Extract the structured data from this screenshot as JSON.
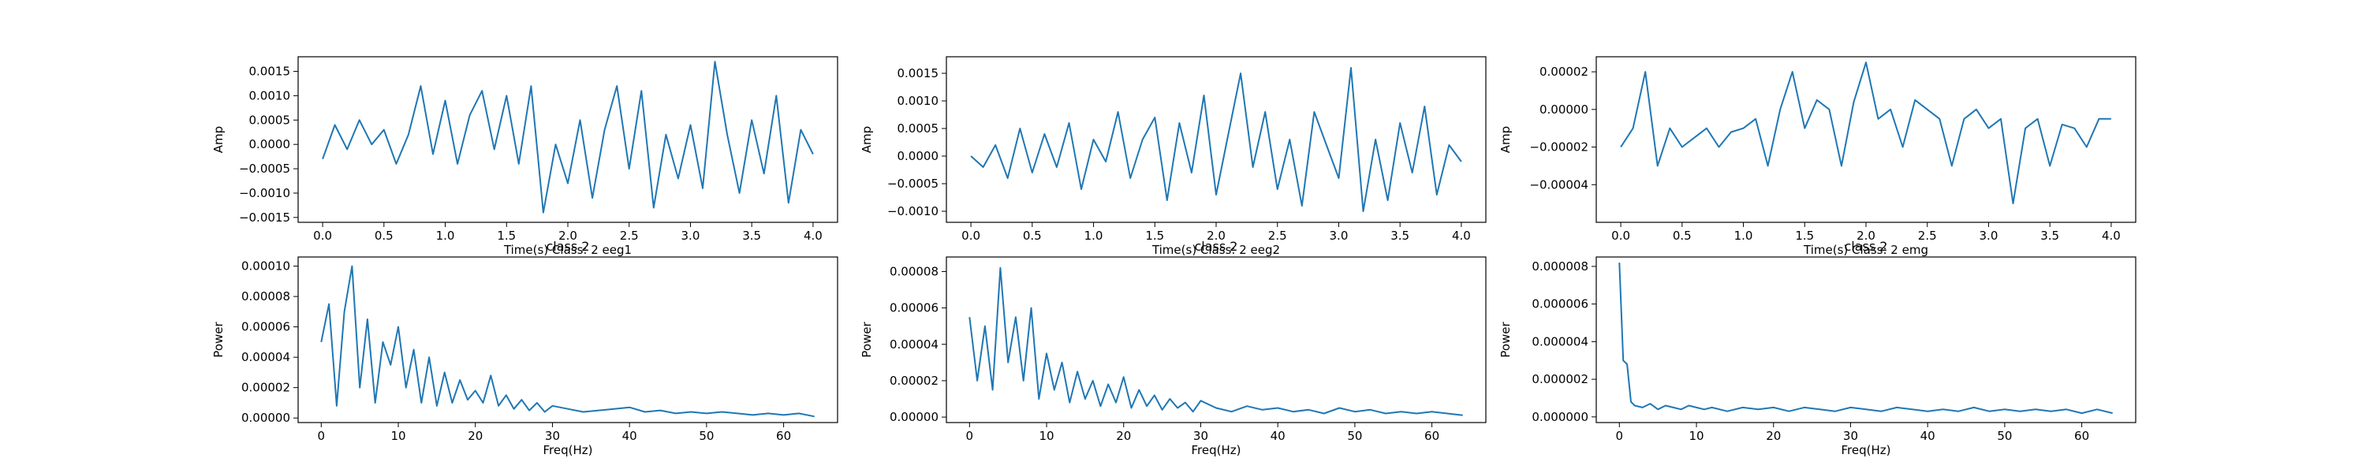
{
  "figure": {
    "overlap_titles": [
      "class 2",
      "class 2",
      "class 2"
    ]
  },
  "chart_data": [
    {
      "type": "line",
      "title": "",
      "xlabel": "Time(s) Class: 2 eeg1",
      "ylabel": "Amp",
      "xlim": [
        -0.2,
        4.2
      ],
      "ylim": [
        -0.0016,
        0.0018
      ],
      "xticks": [
        0.0,
        0.5,
        1.0,
        1.5,
        2.0,
        2.5,
        3.0,
        3.5,
        4.0
      ],
      "xtick_labels": [
        "0.0",
        "0.5",
        "1.0",
        "1.5",
        "2.0",
        "2.5",
        "3.0",
        "3.5",
        "4.0"
      ],
      "yticks": [
        -0.0015,
        -0.001,
        -0.0005,
        0.0,
        0.0005,
        0.001,
        0.0015
      ],
      "ytick_labels": [
        "−0.0015",
        "−0.0010",
        "−0.0005",
        "0.0000",
        "0.0005",
        "0.0010",
        "0.0015"
      ],
      "series": [
        {
          "color": "#1f77b4",
          "x": [
            0.0,
            0.1,
            0.2,
            0.3,
            0.4,
            0.5,
            0.6,
            0.7,
            0.8,
            0.9,
            1.0,
            1.1,
            1.2,
            1.3,
            1.4,
            1.5,
            1.6,
            1.7,
            1.8,
            1.9,
            2.0,
            2.1,
            2.2,
            2.3,
            2.4,
            2.5,
            2.6,
            2.7,
            2.8,
            2.9,
            3.0,
            3.1,
            3.2,
            3.3,
            3.4,
            3.5,
            3.6,
            3.7,
            3.8,
            3.9,
            4.0
          ],
          "y": [
            -0.0003,
            0.0004,
            -0.0001,
            0.0005,
            0.0,
            0.0003,
            -0.0004,
            0.0002,
            0.0012,
            -0.0002,
            0.0009,
            -0.0004,
            0.0006,
            0.0011,
            -0.0001,
            0.001,
            -0.0004,
            0.0012,
            -0.0014,
            0.0,
            -0.0008,
            0.0005,
            -0.0011,
            0.0003,
            0.0012,
            -0.0005,
            0.0011,
            -0.0013,
            0.0002,
            -0.0007,
            0.0004,
            -0.0009,
            0.0017,
            0.0002,
            -0.001,
            0.0005,
            -0.0006,
            0.001,
            -0.0012,
            0.0003,
            -0.0002
          ]
        }
      ]
    },
    {
      "type": "line",
      "title": "",
      "xlabel": "Time(s) Class: 2 eeg2",
      "ylabel": "Amp",
      "xlim": [
        -0.2,
        4.2
      ],
      "ylim": [
        -0.0012,
        0.0018
      ],
      "xticks": [
        0.0,
        0.5,
        1.0,
        1.5,
        2.0,
        2.5,
        3.0,
        3.5,
        4.0
      ],
      "xtick_labels": [
        "0.0",
        "0.5",
        "1.0",
        "1.5",
        "2.0",
        "2.5",
        "3.0",
        "3.5",
        "4.0"
      ],
      "yticks": [
        -0.001,
        -0.0005,
        0.0,
        0.0005,
        0.001,
        0.0015
      ],
      "ytick_labels": [
        "−0.0010",
        "−0.0005",
        "0.0000",
        "0.0005",
        "0.0010",
        "0.0015"
      ],
      "series": [
        {
          "color": "#1f77b4",
          "x": [
            0.0,
            0.1,
            0.2,
            0.3,
            0.4,
            0.5,
            0.6,
            0.7,
            0.8,
            0.9,
            1.0,
            1.1,
            1.2,
            1.3,
            1.4,
            1.5,
            1.6,
            1.7,
            1.8,
            1.9,
            2.0,
            2.1,
            2.2,
            2.3,
            2.4,
            2.5,
            2.6,
            2.7,
            2.8,
            2.9,
            3.0,
            3.1,
            3.2,
            3.3,
            3.4,
            3.5,
            3.6,
            3.7,
            3.8,
            3.9,
            4.0
          ],
          "y": [
            0.0,
            -0.0002,
            0.0002,
            -0.0004,
            0.0005,
            -0.0003,
            0.0004,
            -0.0002,
            0.0006,
            -0.0006,
            0.0003,
            -0.0001,
            0.0008,
            -0.0004,
            0.0003,
            0.0007,
            -0.0008,
            0.0006,
            -0.0003,
            0.0011,
            -0.0007,
            0.0004,
            0.0015,
            -0.0002,
            0.0008,
            -0.0006,
            0.0003,
            -0.0009,
            0.0008,
            0.0002,
            -0.0004,
            0.0016,
            -0.001,
            0.0003,
            -0.0008,
            0.0006,
            -0.0003,
            0.0009,
            -0.0007,
            0.0002,
            -0.0001
          ]
        }
      ]
    },
    {
      "type": "line",
      "title": "",
      "xlabel": "Time(s) Class: 2 emg",
      "ylabel": "Amp",
      "xlim": [
        -0.2,
        4.2
      ],
      "ylim": [
        -6e-05,
        2.8e-05
      ],
      "xticks": [
        0.0,
        0.5,
        1.0,
        1.5,
        2.0,
        2.5,
        3.0,
        3.5,
        4.0
      ],
      "xtick_labels": [
        "0.0",
        "0.5",
        "1.0",
        "1.5",
        "2.0",
        "2.5",
        "3.0",
        "3.5",
        "4.0"
      ],
      "yticks": [
        -4e-05,
        -2e-05,
        0.0,
        2e-05
      ],
      "ytick_labels": [
        "−0.00004",
        "−0.00002",
        "0.00000",
        "0.00002"
      ],
      "series": [
        {
          "color": "#1f77b4",
          "x": [
            0.0,
            0.1,
            0.2,
            0.3,
            0.4,
            0.5,
            0.6,
            0.7,
            0.8,
            0.9,
            1.0,
            1.1,
            1.2,
            1.3,
            1.4,
            1.5,
            1.6,
            1.7,
            1.8,
            1.9,
            2.0,
            2.1,
            2.2,
            2.3,
            2.4,
            2.5,
            2.6,
            2.7,
            2.8,
            2.9,
            3.0,
            3.1,
            3.2,
            3.3,
            3.4,
            3.5,
            3.6,
            3.7,
            3.8,
            3.9,
            4.0
          ],
          "y": [
            -2e-05,
            -1e-05,
            2e-05,
            -3e-05,
            -1e-05,
            -2e-05,
            -1.5e-05,
            -1e-05,
            -2e-05,
            -1.2e-05,
            -1e-05,
            -5e-06,
            -3e-05,
            0.0,
            2e-05,
            -1e-05,
            5e-06,
            0.0,
            -3e-05,
            4e-06,
            2.5e-05,
            -5e-06,
            0.0,
            -2e-05,
            5e-06,
            0.0,
            -5e-06,
            -3e-05,
            -5e-06,
            0.0,
            -1e-05,
            -5e-06,
            -5e-05,
            -1e-05,
            -5e-06,
            -3e-05,
            -8e-06,
            -1e-05,
            -2e-05,
            -5e-06,
            -5e-06
          ]
        }
      ]
    },
    {
      "type": "line",
      "title": "",
      "xlabel": "Freq(Hz)",
      "ylabel": "Power",
      "xlim": [
        -3,
        67
      ],
      "ylim": [
        -3e-06,
        0.000106
      ],
      "xticks": [
        0,
        10,
        20,
        30,
        40,
        50,
        60
      ],
      "xtick_labels": [
        "0",
        "10",
        "20",
        "30",
        "40",
        "50",
        "60"
      ],
      "yticks": [
        0.0,
        2e-05,
        4e-05,
        6e-05,
        8e-05,
        0.0001
      ],
      "ytick_labels": [
        "0.00000",
        "0.00002",
        "0.00004",
        "0.00006",
        "0.00008",
        "0.00010"
      ],
      "series": [
        {
          "color": "#1f77b4",
          "x": [
            0,
            1,
            2,
            3,
            4,
            5,
            6,
            7,
            8,
            9,
            10,
            11,
            12,
            13,
            14,
            15,
            16,
            17,
            18,
            19,
            20,
            21,
            22,
            23,
            24,
            25,
            26,
            27,
            28,
            29,
            30,
            32,
            34,
            36,
            38,
            40,
            42,
            44,
            46,
            48,
            50,
            52,
            54,
            56,
            58,
            60,
            62,
            64
          ],
          "y": [
            5e-05,
            7.5e-05,
            8e-06,
            7e-05,
            0.0001,
            2e-05,
            6.5e-05,
            1e-05,
            5e-05,
            3.5e-05,
            6e-05,
            2e-05,
            4.5e-05,
            1e-05,
            4e-05,
            8e-06,
            3e-05,
            1e-05,
            2.5e-05,
            1.2e-05,
            1.8e-05,
            1e-05,
            2.8e-05,
            8e-06,
            1.5e-05,
            6e-06,
            1.2e-05,
            5e-06,
            1e-05,
            4e-06,
            8e-06,
            6e-06,
            4e-06,
            5e-06,
            6e-06,
            7e-06,
            4e-06,
            5e-06,
            3e-06,
            4e-06,
            3e-06,
            4e-06,
            3e-06,
            2e-06,
            3e-06,
            2e-06,
            3e-06,
            1e-06
          ]
        }
      ]
    },
    {
      "type": "line",
      "title": "",
      "xlabel": "Freq(Hz)",
      "ylabel": "Power",
      "xlim": [
        -3,
        67
      ],
      "ylim": [
        -3e-06,
        8.8e-05
      ],
      "xticks": [
        0,
        10,
        20,
        30,
        40,
        50,
        60
      ],
      "xtick_labels": [
        "0",
        "10",
        "20",
        "30",
        "40",
        "50",
        "60"
      ],
      "yticks": [
        0.0,
        2e-05,
        4e-05,
        6e-05,
        8e-05
      ],
      "ytick_labels": [
        "0.00000",
        "0.00002",
        "0.00004",
        "0.00006",
        "0.00008"
      ],
      "series": [
        {
          "color": "#1f77b4",
          "x": [
            0,
            1,
            2,
            3,
            4,
            5,
            6,
            7,
            8,
            9,
            10,
            11,
            12,
            13,
            14,
            15,
            16,
            17,
            18,
            19,
            20,
            21,
            22,
            23,
            24,
            25,
            26,
            27,
            28,
            29,
            30,
            32,
            34,
            36,
            38,
            40,
            42,
            44,
            46,
            48,
            50,
            52,
            54,
            56,
            58,
            60,
            62,
            64
          ],
          "y": [
            5.5e-05,
            2e-05,
            5e-05,
            1.5e-05,
            8.2e-05,
            3e-05,
            5.5e-05,
            2e-05,
            6e-05,
            1e-05,
            3.5e-05,
            1.5e-05,
            3e-05,
            8e-06,
            2.5e-05,
            1e-05,
            2e-05,
            6e-06,
            1.8e-05,
            8e-06,
            2.2e-05,
            5e-06,
            1.5e-05,
            6e-06,
            1.2e-05,
            4e-06,
            1e-05,
            5e-06,
            8e-06,
            3e-06,
            9e-06,
            5e-06,
            3e-06,
            6e-06,
            4e-06,
            5e-06,
            3e-06,
            4e-06,
            2e-06,
            5e-06,
            3e-06,
            4e-06,
            2e-06,
            3e-06,
            2e-06,
            3e-06,
            2e-06,
            1e-06
          ]
        }
      ]
    },
    {
      "type": "line",
      "title": "",
      "xlabel": "Freq(Hz)",
      "ylabel": "Power",
      "xlim": [
        -3,
        67
      ],
      "ylim": [
        -3e-07,
        8.5e-06
      ],
      "xticks": [
        0,
        10,
        20,
        30,
        40,
        50,
        60
      ],
      "xtick_labels": [
        "0",
        "10",
        "20",
        "30",
        "40",
        "50",
        "60"
      ],
      "yticks": [
        0.0,
        2e-06,
        4e-06,
        6e-06,
        8e-06
      ],
      "ytick_labels": [
        "0.000000",
        "0.000002",
        "0.000004",
        "0.000006",
        "0.000008"
      ],
      "series": [
        {
          "color": "#1f77b4",
          "x": [
            0,
            0.5,
            1,
            1.5,
            2,
            3,
            4,
            5,
            6,
            7,
            8,
            9,
            10,
            11,
            12,
            14,
            16,
            18,
            20,
            22,
            24,
            26,
            28,
            30,
            32,
            34,
            36,
            38,
            40,
            42,
            44,
            46,
            48,
            50,
            52,
            54,
            56,
            58,
            60,
            62,
            64
          ],
          "y": [
            8.2e-06,
            3e-06,
            2.8e-06,
            8e-07,
            6e-07,
            5e-07,
            7e-07,
            4e-07,
            6e-07,
            5e-07,
            4e-07,
            6e-07,
            5e-07,
            4e-07,
            5e-07,
            3e-07,
            5e-07,
            4e-07,
            5e-07,
            3e-07,
            5e-07,
            4e-07,
            3e-07,
            5e-07,
            4e-07,
            3e-07,
            5e-07,
            4e-07,
            3e-07,
            4e-07,
            3e-07,
            5e-07,
            3e-07,
            4e-07,
            3e-07,
            4e-07,
            3e-07,
            4e-07,
            2e-07,
            4e-07,
            2e-07
          ]
        }
      ]
    }
  ]
}
